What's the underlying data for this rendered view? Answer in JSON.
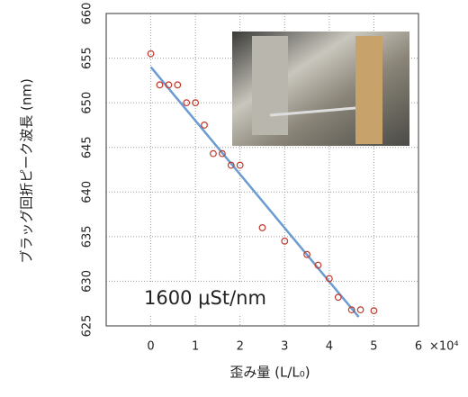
{
  "chart_data": {
    "type": "scatter",
    "x_label": "歪み量 (L/L₀)",
    "y_label": "ブラッグ回折ピーク波長 (nm)",
    "x_multiplier": "×10⁴",
    "annotation": "1600 μSt/nm",
    "xlim": [
      -1,
      6
    ],
    "xticks": [
      0,
      1,
      2,
      3,
      4,
      5,
      6
    ],
    "ylim": [
      625,
      660
    ],
    "yticks": [
      625,
      630,
      635,
      640,
      645,
      650,
      655,
      660
    ],
    "grid": true,
    "series": [
      {
        "mode": "markers",
        "color": "#c0392b",
        "x": [
          0,
          0.2,
          0.4,
          0.6,
          0.8,
          1.0,
          1.2,
          1.4,
          1.6,
          1.8,
          2.0,
          2.5,
          3.0,
          3.5,
          3.75,
          4.0,
          4.2,
          4.5,
          4.7,
          5.0
        ],
        "values": [
          655.5,
          652,
          652,
          652,
          650,
          650,
          647.5,
          644.3,
          644.3,
          643,
          643,
          636,
          634.5,
          633,
          631.8,
          630.3,
          628.2,
          626.8,
          626.8,
          626.7
        ]
      },
      {
        "mode": "line",
        "color": "#6a9bd1",
        "x": [
          0,
          4.66
        ],
        "values": [
          654,
          626
        ]
      }
    ]
  }
}
